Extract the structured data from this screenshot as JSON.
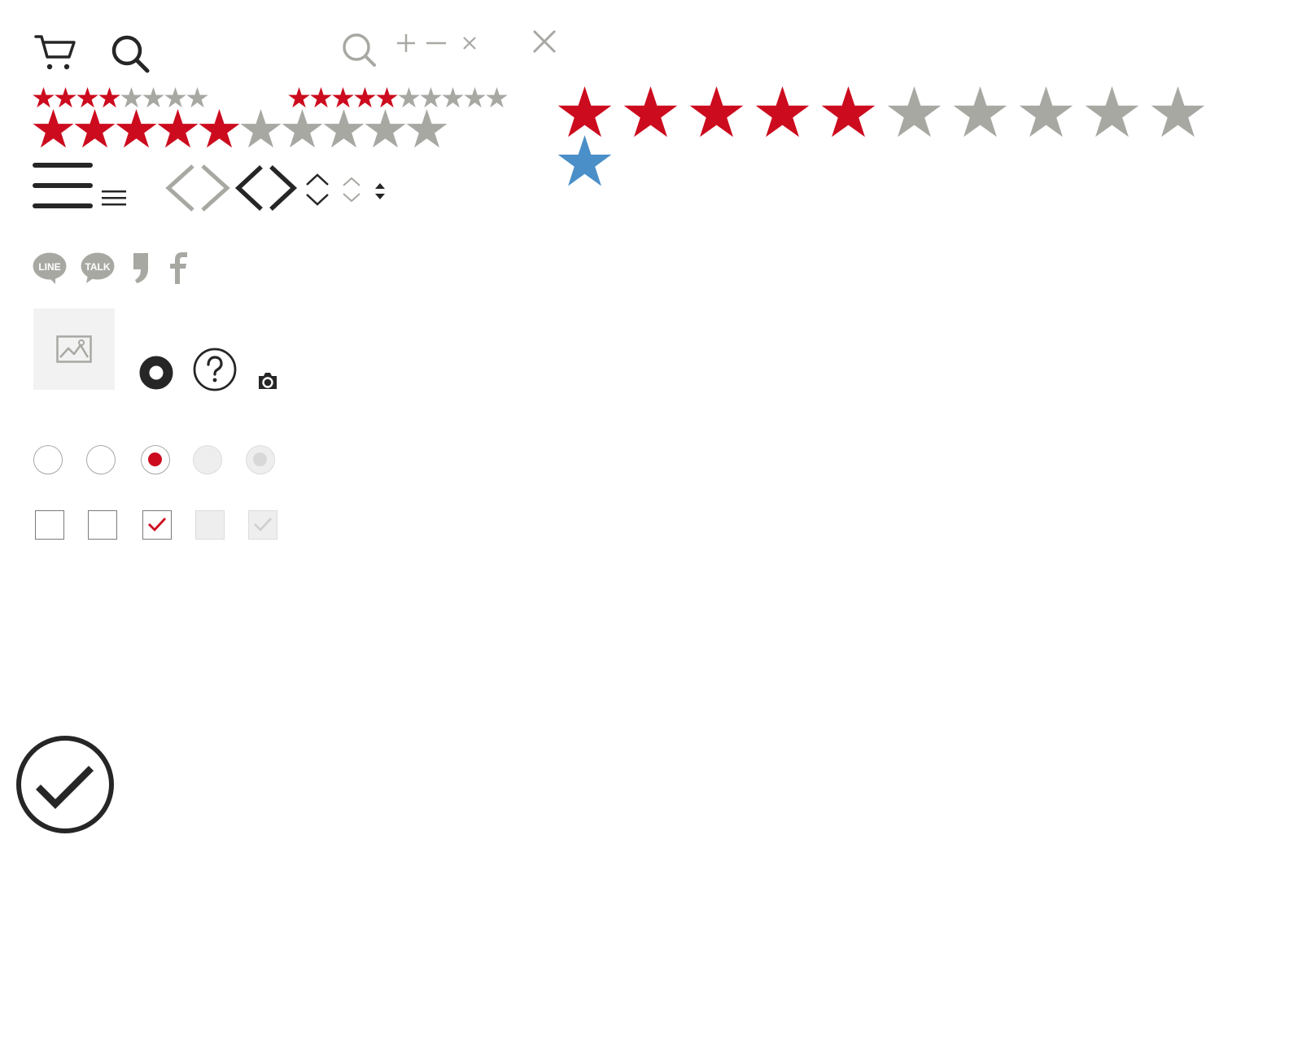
{
  "colors": {
    "dark": "#262626",
    "gray": "#a8a8a3",
    "light_gray": "#c8c8c8",
    "red": "#cc0b1e",
    "blue": "#4a8fc8",
    "placeholder_bg": "#f2f2f2",
    "disabled_bg": "#eeeeee"
  },
  "icons": {
    "cart": "cart-icon",
    "search_dark": "search-icon",
    "search_gray": "search-icon",
    "plus": "plus-icon",
    "minus": "minus-icon",
    "close_small": "close-icon",
    "close_large": "close-icon",
    "hamburger_large": "hamburger-menu-icon",
    "hamburger_small": "hamburger-menu-icon",
    "chevron_gray": "chevron-left-right-icon",
    "chevron_dark": "chevron-left-right-icon",
    "updown_dark": "chevron-up-down-icon",
    "updown_gray": "chevron-up-down-icon",
    "sort_triangles": "sort-icon",
    "image_placeholder": "image-icon",
    "ring": "ring-icon",
    "help": "question-circle-icon",
    "camera": "camera-icon",
    "check_circle": "check-circle-icon"
  },
  "social": {
    "line_label": "LINE",
    "talk_label": "TALK",
    "comma": "comma-icon",
    "facebook": "facebook-icon"
  },
  "ratings": [
    {
      "name": "rating-small-a",
      "value": 4,
      "max": 8
    },
    {
      "name": "rating-small-b",
      "value": 5,
      "max": 10
    },
    {
      "name": "rating-medium",
      "value": 5,
      "max": 10
    },
    {
      "name": "rating-large",
      "value": 5,
      "max": 10
    }
  ],
  "favorite_star": {
    "name": "favorite-star",
    "color": "#4a8fc8"
  },
  "radios": [
    {
      "state": "unchecked"
    },
    {
      "state": "unchecked"
    },
    {
      "state": "checked"
    },
    {
      "state": "disabled"
    },
    {
      "state": "disabled-checked"
    }
  ],
  "checkboxes": [
    {
      "state": "unchecked"
    },
    {
      "state": "unchecked"
    },
    {
      "state": "checked"
    },
    {
      "state": "disabled"
    },
    {
      "state": "disabled-checked"
    }
  ]
}
